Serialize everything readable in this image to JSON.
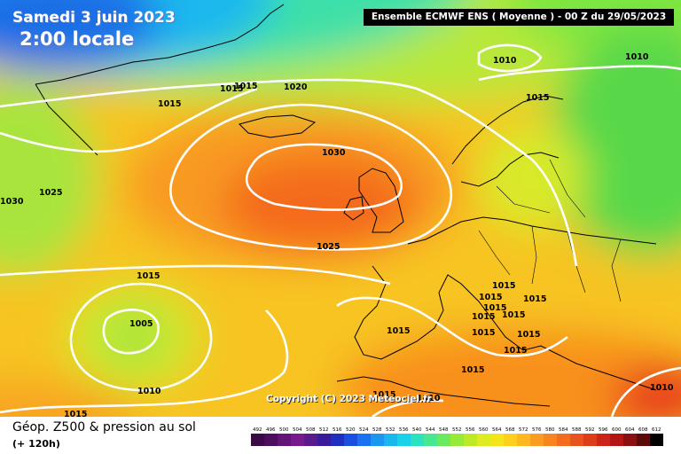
{
  "map": {
    "date_label": "Samedi 3 juin 2023",
    "time_label": "2:00 locale",
    "header": "Ensemble ECMWF ENS  ( Moyenne )  - 00 Z du 29/05/2023",
    "copyright": "Copyright (C) 2023 Meteociel.fr",
    "isobar_labels": [
      "1010",
      "1010",
      "1015",
      "1015",
      "1015",
      "1015",
      "1020",
      "1030",
      "1025",
      "1030",
      "1025",
      "1015",
      "1005",
      "1010",
      "1015",
      "1015",
      "1015",
      "1015",
      "1015",
      "1015",
      "1015",
      "1015",
      "1015",
      "1015",
      "1015",
      "1015",
      "1015",
      "1010",
      "1010"
    ]
  },
  "footer": {
    "product": "Géop. Z500 & pression au sol",
    "lead_time": "(+ 120h)"
  },
  "colorbar": {
    "ticks": [
      "492",
      "496",
      "500",
      "504",
      "508",
      "512",
      "516",
      "520",
      "524",
      "528",
      "532",
      "536",
      "540",
      "544",
      "548",
      "552",
      "556",
      "560",
      "564",
      "568",
      "572",
      "576",
      "580",
      "584",
      "588",
      "592",
      "596",
      "600",
      "604",
      "608",
      "612"
    ],
    "colors": [
      "#3c0a46",
      "#4e0e5e",
      "#621478",
      "#761a8e",
      "#5a1a8c",
      "#3a1c9a",
      "#1f2fc0",
      "#1a4fe0",
      "#1a72f0",
      "#1a95f0",
      "#1ab6ee",
      "#1ad2e8",
      "#2ae2c0",
      "#48e890",
      "#6cea5e",
      "#96ea38",
      "#bcea26",
      "#dcec20",
      "#f4e41a",
      "#fcd01c",
      "#fcb81e",
      "#fa9c20",
      "#f88420",
      "#f26c1e",
      "#e8521c",
      "#dc3c1a",
      "#cc2418",
      "#b41616",
      "#8c1010",
      "#5c0a0a",
      "#000000"
    ]
  }
}
